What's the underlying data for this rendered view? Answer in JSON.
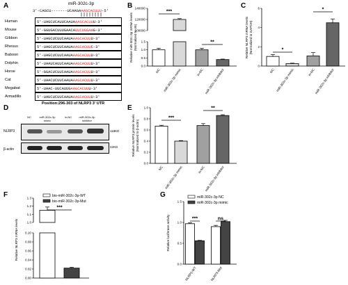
{
  "colors": {
    "highlight": "#e02020",
    "gray_bar": "#a0a0a0",
    "dark_bar": "#666666",
    "light_bar": "#d9d9d9"
  },
  "panel_a": {
    "letter": "A",
    "mir_label": "miR-302c-3p",
    "mir_seq": "3'-CAGCU-------UCAAGA",
    "mir_seq_hl": "AAGCACUUU",
    "mir_seq_end": "-5'",
    "rows": [
      {
        "species": "Human",
        "pre": "5'-UAGCUCAUUCAAUA",
        "hl": "AAGCACUU",
        "post": "U-3'"
      },
      {
        "species": "Mouse",
        "pre": "5'-GGUGACUUUGAACA",
        "hl": "UUCUGGAA",
        "post": "G-3'"
      },
      {
        "species": "Gibbon",
        "pre": "5'-UAGCUCUUCAAUA",
        "hl": "AAGCACUU",
        "post": "U-3'"
      },
      {
        "species": "Rhesus",
        "pre": "5'-UAGCUCUUCAAUA",
        "hl": "AAGCACUU",
        "post": "C-3'"
      },
      {
        "species": "Baboon",
        "pre": "5'-UAGCUCUUCAAUA",
        "hl": "AAGCACUU",
        "post": "U-3'"
      },
      {
        "species": "Dolphin",
        "pre": "5'-UAAUCAUUCAAUA",
        "hl": "AAGCACUU",
        "post": "U-3'"
      },
      {
        "species": "Horse",
        "pre": "5'-GGACUCUUCAAUA",
        "hl": "AAGCACUU",
        "post": "U-3'"
      },
      {
        "species": "Cat",
        "pre": "5'-UAACUCUUCAAUA",
        "hl": "AAGCACUU",
        "post": "U-3'"
      },
      {
        "species": "Megabat",
        "pre": "5'-UAAC-UUCAUUG",
        "hl": "AAGCACUU",
        "post": "U-3'"
      },
      {
        "species": "Armadillo",
        "pre": "5'-UAUCUCUUCAAUA",
        "hl": "AAGCACUU",
        "post": "U-3'"
      }
    ],
    "position": "Position:296-303 of NLRP3 3' UTR"
  },
  "panel_d": {
    "letter": "D",
    "lanes": [
      "NC",
      "miR-302c-3p mimic",
      "in-NC",
      "miR-302c-3p inhibitor"
    ],
    "rows": [
      {
        "label": "NLRP3",
        "kda": "118KD"
      },
      {
        "label": "β-actin",
        "kda": "42KD"
      }
    ]
  },
  "chart_data": [
    {
      "panel": "B",
      "type": "bar",
      "title": "",
      "ylabel": "Relative miR-302c-3p mRNA levels\n(Normalized to U6)",
      "categories": [
        "NC",
        "miR-302c-3p mimic",
        "in-NC",
        "miR-302c-3p inhibitor"
      ],
      "values": [
        1.0,
        120000,
        1.0,
        0.4
      ],
      "errors": [
        0.1,
        1500,
        0.1,
        0.03
      ],
      "colors": [
        "#ffffff",
        "#d9d9d9",
        "#a0a0a0",
        "#666666"
      ],
      "yaxis_break": true,
      "yticks": [
        "0.0",
        "0.5",
        "1.0",
        "1.5",
        "100000",
        "120000",
        "140000"
      ],
      "sig": [
        {
          "from": 0,
          "to": 1,
          "label": "***"
        },
        {
          "from": 2,
          "to": 3,
          "label": "**"
        }
      ]
    },
    {
      "panel": "C",
      "type": "bar",
      "ylabel": "Relative NLRP3 mRNA levels\n(Normalized to GAPDH)",
      "categories": [
        "NC",
        "miR-302c-3p mimic",
        "in-NC",
        "miR-302c-3p inhibitor"
      ],
      "values": [
        1.0,
        0.25,
        1.05,
        4.5
      ],
      "errors": [
        0.2,
        0.05,
        0.35,
        0.4
      ],
      "colors": [
        "#ffffff",
        "#d9d9d9",
        "#a0a0a0",
        "#666666"
      ],
      "ylim": [
        0,
        6
      ],
      "yticks": [
        "0",
        "2",
        "4",
        "6"
      ],
      "sig": [
        {
          "from": 0,
          "to": 1,
          "label": "*"
        },
        {
          "from": 2,
          "to": 3,
          "label": "*"
        }
      ]
    },
    {
      "panel": "E",
      "type": "bar",
      "ylabel": "Relative NLRP3 protein levels\n(Normalized to β-actin)",
      "categories": [
        "NC",
        "miR-302c-3p mimic",
        "in-NC",
        "miR-302c-3p inhibitor"
      ],
      "values": [
        0.67,
        0.4,
        0.68,
        0.86
      ],
      "errors": [
        0.015,
        0.01,
        0.035,
        0.015
      ],
      "colors": [
        "#ffffff",
        "#d9d9d9",
        "#a0a0a0",
        "#666666"
      ],
      "ylim": [
        0,
        1.0
      ],
      "yticks": [
        "0.0",
        "0.2",
        "0.4",
        "0.6",
        "0.8",
        "1.0"
      ],
      "sig": [
        {
          "from": 0,
          "to": 1,
          "label": "***"
        },
        {
          "from": 2,
          "to": 3,
          "label": "**"
        }
      ]
    },
    {
      "panel": "F",
      "type": "bar",
      "ylabel": "Relative NLRP3 mRNA levels",
      "series": [
        {
          "name": "bio-miR-302c-3p-WT",
          "values": [
            1.15
          ],
          "errors": [
            0.04
          ],
          "color": "#ffffff"
        },
        {
          "name": "bio-miR-302c-3p-Mut",
          "values": [
            0.022
          ],
          "errors": [
            0.002
          ],
          "color": "#444444"
        }
      ],
      "yaxis_break": true,
      "yticks": [
        "0.00",
        "0.02",
        "0.04",
        "0.06",
        "0.08",
        "0.10",
        "1.0",
        "1.1",
        "1.2",
        "1.3"
      ],
      "sig": [
        {
          "from": 0,
          "to": 1,
          "label": "***"
        }
      ]
    },
    {
      "panel": "G",
      "type": "bar",
      "ylabel": "Relative luciferase activity",
      "categories": [
        "NLRP3-WT",
        "NLRP3-Mut"
      ],
      "series": [
        {
          "name": "miR-302c-3p NC",
          "values": [
            0.97,
            0.9
          ],
          "errors": [
            0.02,
            0.03
          ],
          "color": "#ffffff"
        },
        {
          "name": "miR-302c-3p mimic",
          "values": [
            0.56,
            1.02
          ],
          "errors": [
            0.01,
            0.03
          ],
          "color": "#444444"
        }
      ],
      "ylim": [
        0,
        1.5
      ],
      "yticks": [
        "0.0",
        "0.5",
        "1.0",
        "1.5"
      ],
      "sig": [
        {
          "group": 0,
          "label": "***"
        },
        {
          "group": 1,
          "label": "ns"
        }
      ]
    }
  ]
}
